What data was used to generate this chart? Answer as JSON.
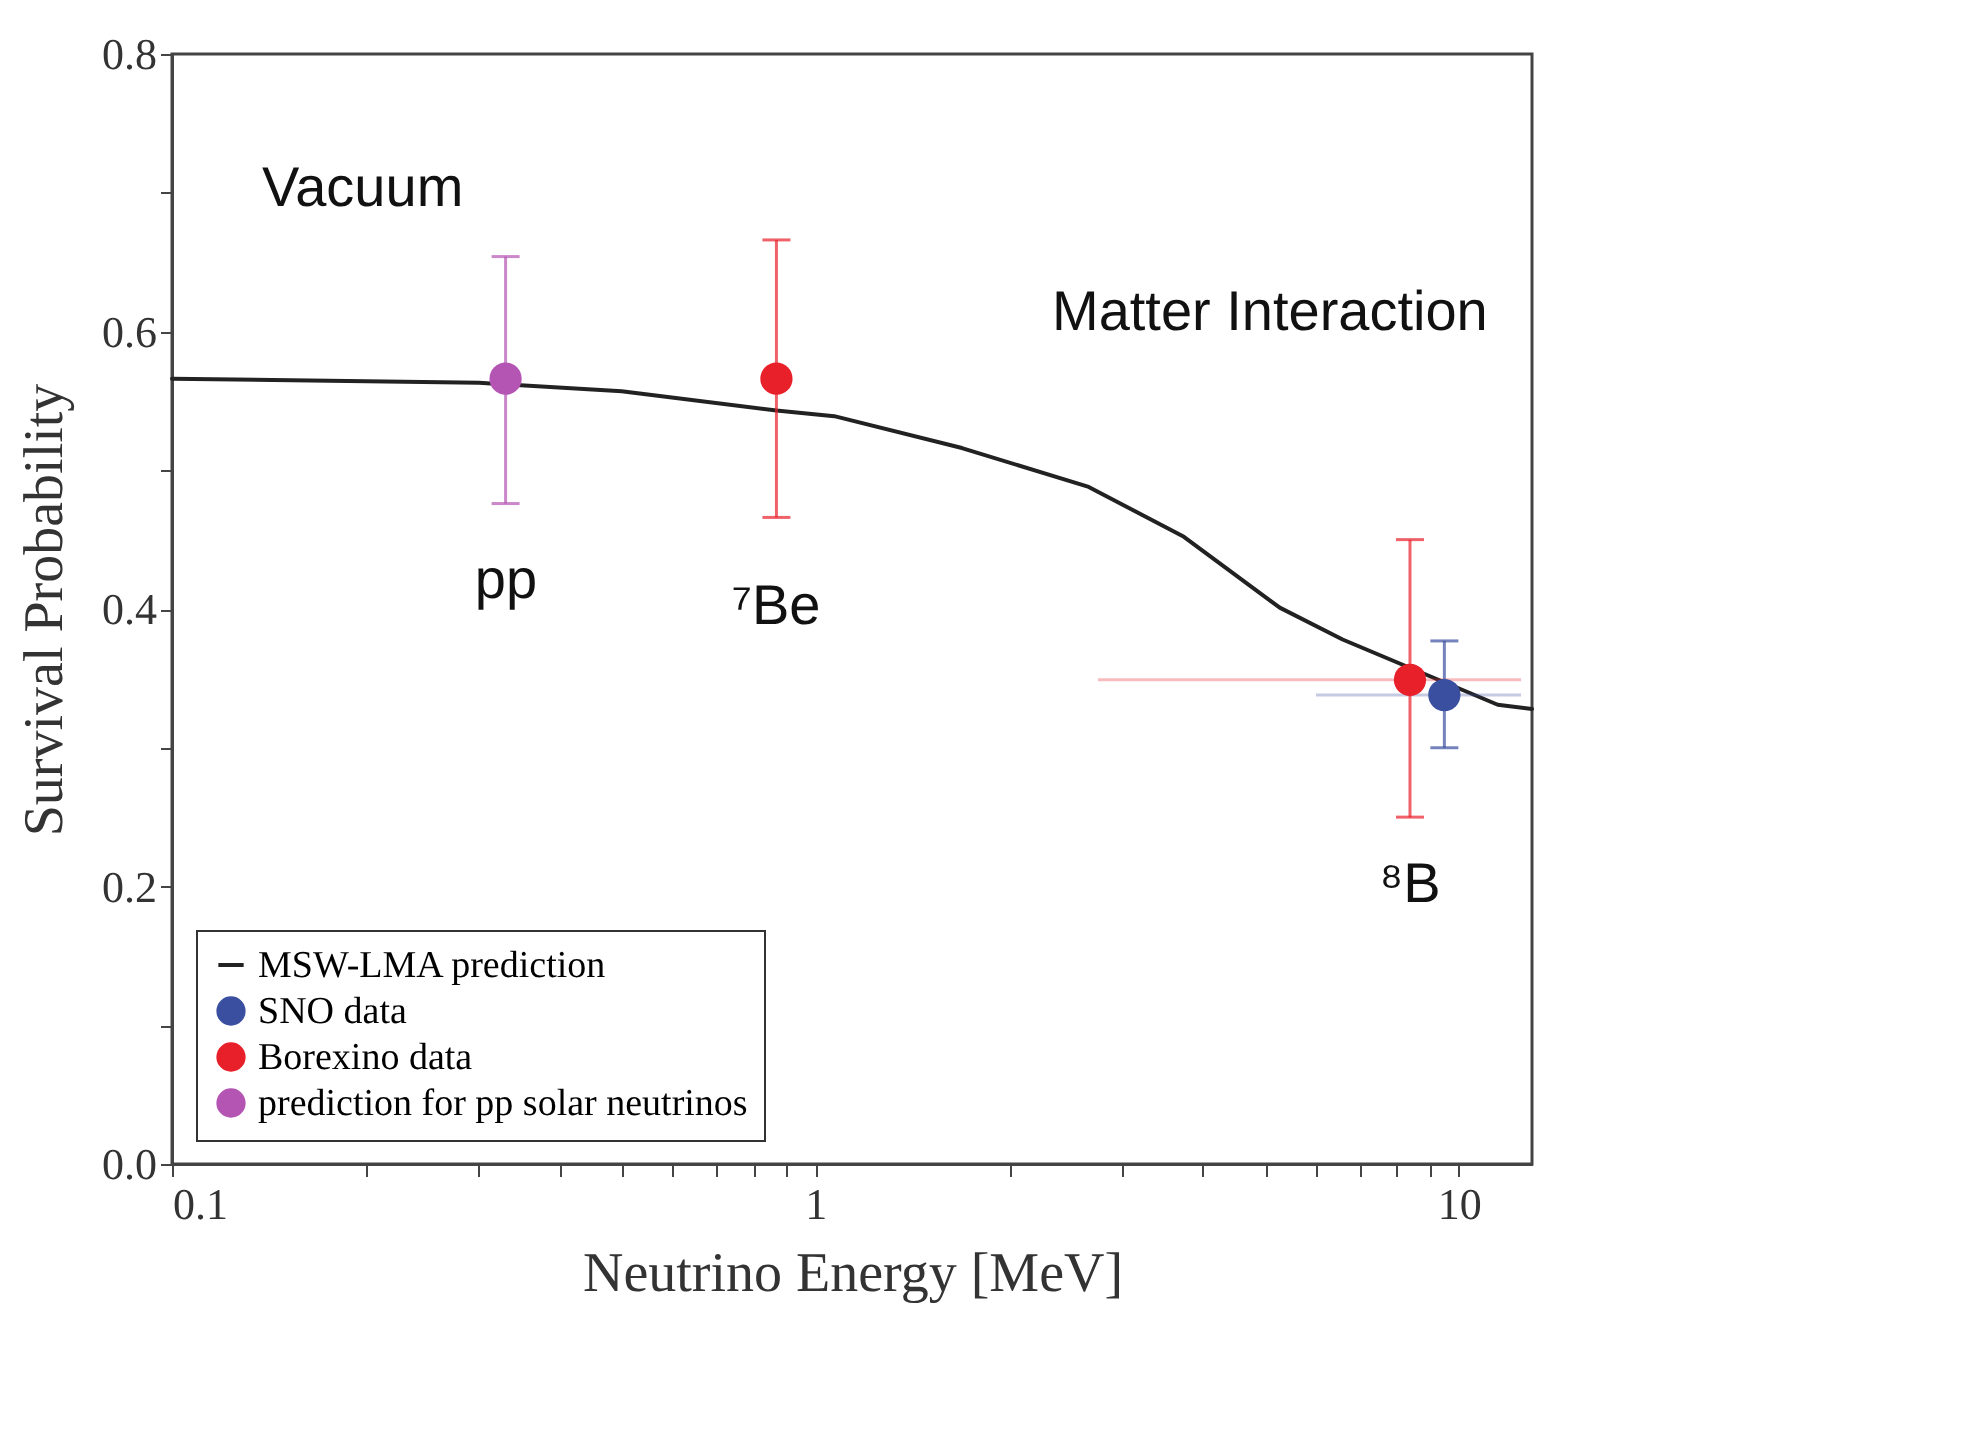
{
  "chart_data": {
    "type": "scatter",
    "xlabel": "Neutrino Energy [MeV]",
    "ylabel": "Survival Probability",
    "log": "x",
    "grid": false,
    "legend": "bottom left",
    "marker": "circle",
    "xlim": [
      0.1,
      13
    ],
    "ylim": [
      0,
      0.8
    ],
    "xticks": [
      0.1,
      {
        "value": 0.2,
        "label": null
      },
      {
        "value": 0.3,
        "label": null
      },
      {
        "value": 0.4,
        "label": null
      },
      {
        "value": 0.5,
        "label": null
      },
      {
        "value": 0.6,
        "label": null
      },
      {
        "value": 0.7,
        "label": null
      },
      {
        "value": 0.8,
        "label": null
      },
      {
        "value": 0.9,
        "label": null
      },
      1,
      {
        "value": 2,
        "label": null
      },
      {
        "value": 3,
        "label": null
      },
      {
        "value": 4,
        "label": null
      },
      {
        "value": 5,
        "label": null
      },
      {
        "value": 6,
        "label": null
      },
      {
        "value": 7,
        "label": null
      },
      {
        "value": 8,
        "label": null
      },
      {
        "value": 9,
        "label": null
      },
      10
    ],
    "yticks": [
      {
        "value": 0,
        "label": "0.0"
      },
      {
        "value": 0.1,
        "label": null
      },
      0.2,
      {
        "value": 0.3,
        "label": null
      },
      0.4,
      {
        "value": 0.5,
        "label": null
      },
      0.6,
      {
        "value": 0.7,
        "label": null
      },
      0.8
    ],
    "series": [
      {
        "name": "MSW-LMA prediction",
        "type": "line",
        "marker": "none",
        "color": "#222222",
        "x": [
          0.1,
          0.3,
          0.5,
          0.87,
          1.07,
          1.69,
          2.66,
          3.74,
          5.27,
          6.6,
          11.5,
          13
        ],
        "values": [
          0.566,
          0.563,
          0.557,
          0.543,
          0.539,
          0.516,
          0.488,
          0.452,
          0.401,
          0.378,
          0.331,
          0.328
        ]
      },
      {
        "name": "SNO data",
        "color": "#3a4fa0",
        "x": [
          9.5
        ],
        "values": [
          0.338
        ],
        "errors": [
          [
            0.3,
            0.377
          ]
        ],
        "xerrors": [
          [
            6.0,
            12.5
          ]
        ]
      },
      {
        "name": "Borexino data",
        "color": "#e8202a",
        "x": [
          0.87,
          8.4
        ],
        "values": [
          0.566,
          0.349
        ],
        "errors": [
          [
            0.466,
            0.666
          ],
          [
            0.25,
            0.45
          ]
        ],
        "xerrors": [
          null,
          [
            2.75,
            12.5
          ]
        ]
      },
      {
        "name": "prediction for pp solar neutrinos",
        "color": "#b455b4",
        "x": [
          0.33
        ],
        "values": [
          0.566
        ],
        "errors": [
          [
            0.476,
            0.654
          ]
        ]
      }
    ],
    "annotations": [
      "Vacuum",
      "pp",
      "⁷Be",
      "Matter Interaction",
      "⁸B"
    ]
  }
}
